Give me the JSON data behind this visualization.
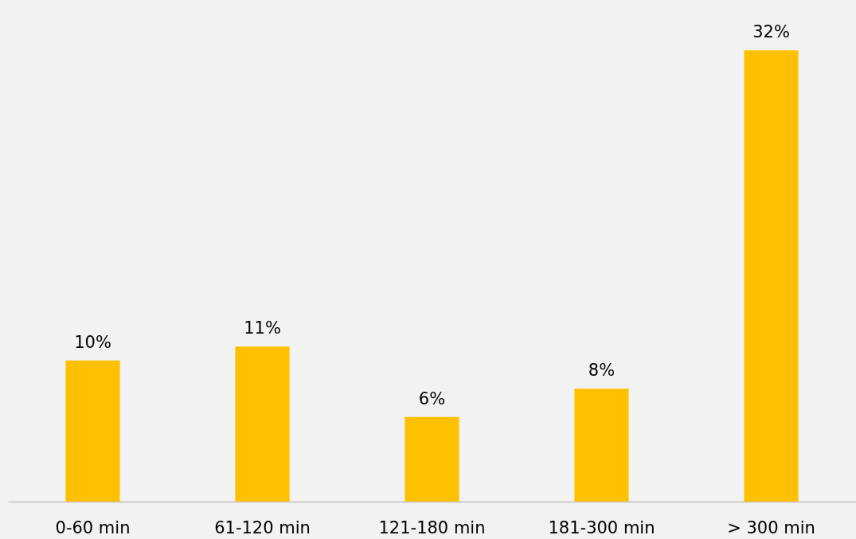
{
  "chart_data": {
    "type": "bar",
    "categories": [
      "0-60 min",
      "61-120 min",
      "121-180 min",
      "181-300 min",
      "> 300 min"
    ],
    "values": [
      10,
      11,
      6,
      8,
      32
    ],
    "value_labels": [
      "10%",
      "11%",
      "6%",
      "8%",
      "32%"
    ],
    "color": "#ffc000",
    "grid": false
  }
}
